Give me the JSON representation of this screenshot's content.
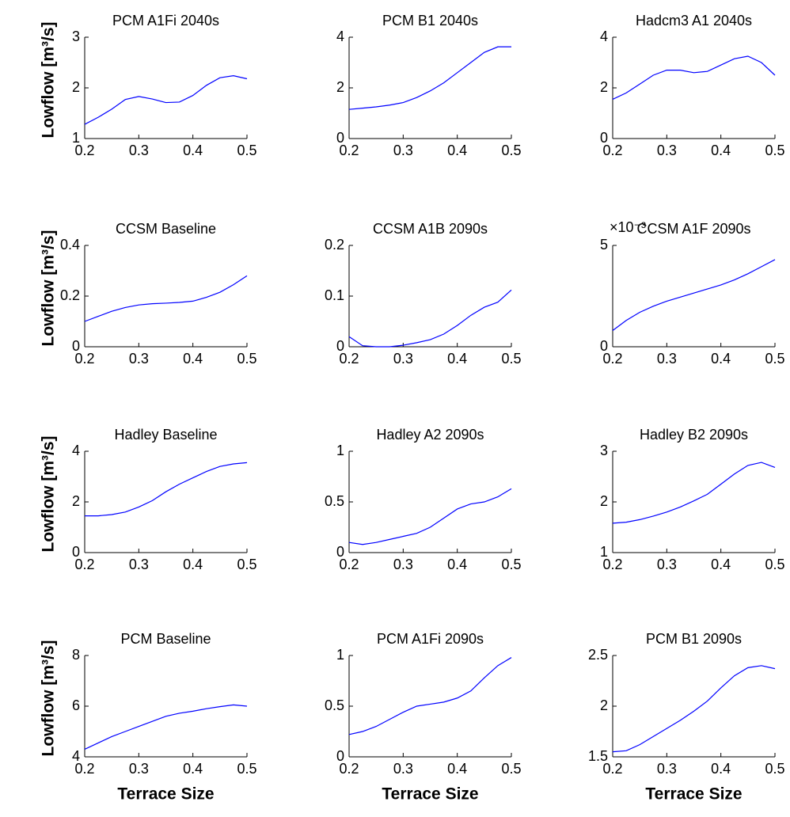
{
  "chart_data": [
    {
      "type": "line",
      "title": "PCM A1Fi 2040s",
      "ylabel": "Lowflow [m³/s]",
      "color": "#0000ff",
      "xlim": [
        0.2,
        0.5
      ],
      "xticks": [
        0.2,
        0.3,
        0.4,
        0.5
      ],
      "ylim": [
        1,
        3
      ],
      "yticks": [
        1,
        2,
        3
      ],
      "x": [
        0.2,
        0.225,
        0.25,
        0.275,
        0.3,
        0.325,
        0.35,
        0.375,
        0.4,
        0.425,
        0.45,
        0.475,
        0.5
      ],
      "values": [
        1.28,
        1.42,
        1.58,
        1.77,
        1.83,
        1.78,
        1.71,
        1.72,
        1.85,
        2.05,
        2.2,
        2.24,
        2.18
      ]
    },
    {
      "type": "line",
      "title": "PCM B1 2040s",
      "color": "#0000ff",
      "xlim": [
        0.2,
        0.5
      ],
      "xticks": [
        0.2,
        0.3,
        0.4,
        0.5
      ],
      "ylim": [
        0,
        4
      ],
      "yticks": [
        0,
        2,
        4
      ],
      "x": [
        0.2,
        0.225,
        0.25,
        0.275,
        0.3,
        0.325,
        0.35,
        0.375,
        0.4,
        0.425,
        0.45,
        0.475,
        0.5
      ],
      "values": [
        1.15,
        1.2,
        1.25,
        1.32,
        1.42,
        1.62,
        1.88,
        2.2,
        2.6,
        3.0,
        3.4,
        3.62,
        3.62
      ]
    },
    {
      "type": "line",
      "title": "Hadcm3 A1 2040s",
      "color": "#0000ff",
      "xlim": [
        0.2,
        0.5
      ],
      "xticks": [
        0.2,
        0.3,
        0.4,
        0.5
      ],
      "ylim": [
        0,
        4
      ],
      "yticks": [
        0,
        2,
        4
      ],
      "x": [
        0.2,
        0.225,
        0.25,
        0.275,
        0.3,
        0.325,
        0.35,
        0.375,
        0.4,
        0.425,
        0.45,
        0.475,
        0.5
      ],
      "values": [
        1.55,
        1.8,
        2.15,
        2.5,
        2.7,
        2.7,
        2.6,
        2.65,
        2.9,
        3.15,
        3.25,
        3.0,
        2.5
      ]
    },
    {
      "type": "line",
      "title": "CCSM Baseline",
      "ylabel": "Lowflow [m³/s]",
      "color": "#0000ff",
      "xlim": [
        0.2,
        0.5
      ],
      "xticks": [
        0.2,
        0.3,
        0.4,
        0.5
      ],
      "ylim": [
        0,
        0.4
      ],
      "yticks": [
        0,
        0.2,
        0.4
      ],
      "x": [
        0.2,
        0.225,
        0.25,
        0.275,
        0.3,
        0.325,
        0.35,
        0.375,
        0.4,
        0.425,
        0.45,
        0.475,
        0.5
      ],
      "values": [
        0.1,
        0.12,
        0.14,
        0.155,
        0.165,
        0.17,
        0.172,
        0.175,
        0.18,
        0.195,
        0.215,
        0.245,
        0.28
      ]
    },
    {
      "type": "line",
      "title": "CCSM A1B 2090s",
      "color": "#0000ff",
      "xlim": [
        0.2,
        0.5
      ],
      "xticks": [
        0.2,
        0.3,
        0.4,
        0.5
      ],
      "ylim": [
        0,
        0.2
      ],
      "yticks": [
        0,
        0.1,
        0.2
      ],
      "x": [
        0.2,
        0.225,
        0.25,
        0.275,
        0.3,
        0.325,
        0.35,
        0.375,
        0.4,
        0.425,
        0.45,
        0.475,
        0.5
      ],
      "values": [
        0.02,
        0.002,
        0,
        0,
        0.003,
        0.008,
        0.014,
        0.025,
        0.042,
        0.062,
        0.078,
        0.088,
        0.112
      ]
    },
    {
      "type": "line",
      "title": "CCSM A1F 2090s",
      "y_exponent_label": "×10⁻³",
      "color": "#0000ff",
      "xlim": [
        0.2,
        0.5
      ],
      "xticks": [
        0.2,
        0.3,
        0.4,
        0.5
      ],
      "ylim": [
        0,
        5
      ],
      "yticks": [
        0,
        5
      ],
      "x": [
        0.2,
        0.225,
        0.25,
        0.275,
        0.3,
        0.325,
        0.35,
        0.375,
        0.4,
        0.425,
        0.45,
        0.475,
        0.5
      ],
      "values": [
        0.8,
        1.3,
        1.7,
        2.0,
        2.25,
        2.45,
        2.65,
        2.85,
        3.05,
        3.3,
        3.6,
        3.95,
        4.3
      ]
    },
    {
      "type": "line",
      "title": "Hadley Baseline",
      "ylabel": "Lowflow [m³/s]",
      "color": "#0000ff",
      "xlim": [
        0.2,
        0.5
      ],
      "xticks": [
        0.2,
        0.3,
        0.4,
        0.5
      ],
      "ylim": [
        0,
        4
      ],
      "yticks": [
        0,
        2,
        4
      ],
      "x": [
        0.2,
        0.225,
        0.25,
        0.275,
        0.3,
        0.325,
        0.35,
        0.375,
        0.4,
        0.425,
        0.45,
        0.475,
        0.5
      ],
      "values": [
        1.45,
        1.45,
        1.5,
        1.6,
        1.8,
        2.05,
        2.4,
        2.7,
        2.95,
        3.2,
        3.4,
        3.5,
        3.55
      ]
    },
    {
      "type": "line",
      "title": "Hadley A2 2090s",
      "color": "#0000ff",
      "xlim": [
        0.2,
        0.5
      ],
      "xticks": [
        0.2,
        0.3,
        0.4,
        0.5
      ],
      "ylim": [
        0,
        1
      ],
      "yticks": [
        0,
        0.5,
        1
      ],
      "x": [
        0.2,
        0.225,
        0.25,
        0.275,
        0.3,
        0.325,
        0.35,
        0.375,
        0.4,
        0.425,
        0.45,
        0.475,
        0.5
      ],
      "values": [
        0.1,
        0.08,
        0.1,
        0.13,
        0.16,
        0.19,
        0.25,
        0.34,
        0.43,
        0.48,
        0.5,
        0.55,
        0.63
      ]
    },
    {
      "type": "line",
      "title": "Hadley B2 2090s",
      "color": "#0000ff",
      "xlim": [
        0.2,
        0.5
      ],
      "xticks": [
        0.2,
        0.3,
        0.4,
        0.5
      ],
      "ylim": [
        1,
        3
      ],
      "yticks": [
        1,
        2,
        3
      ],
      "x": [
        0.2,
        0.225,
        0.25,
        0.275,
        0.3,
        0.325,
        0.35,
        0.375,
        0.4,
        0.425,
        0.45,
        0.475,
        0.5
      ],
      "values": [
        1.58,
        1.6,
        1.65,
        1.72,
        1.8,
        1.9,
        2.02,
        2.15,
        2.35,
        2.55,
        2.72,
        2.78,
        2.68
      ]
    },
    {
      "type": "line",
      "title": "PCM Baseline",
      "ylabel": "Lowflow [m³/s]",
      "xlabel": "Terrace Size",
      "color": "#0000ff",
      "xlim": [
        0.2,
        0.5
      ],
      "xticks": [
        0.2,
        0.3,
        0.4,
        0.5
      ],
      "ylim": [
        4,
        8
      ],
      "yticks": [
        4,
        6,
        8
      ],
      "x": [
        0.2,
        0.225,
        0.25,
        0.275,
        0.3,
        0.325,
        0.35,
        0.375,
        0.4,
        0.425,
        0.45,
        0.475,
        0.5
      ],
      "values": [
        4.3,
        4.55,
        4.8,
        5.0,
        5.2,
        5.4,
        5.6,
        5.72,
        5.8,
        5.9,
        5.98,
        6.05,
        6.0
      ]
    },
    {
      "type": "line",
      "title": "PCM A1Fi 2090s",
      "xlabel": "Terrace Size",
      "color": "#0000ff",
      "xlim": [
        0.2,
        0.5
      ],
      "xticks": [
        0.2,
        0.3,
        0.4,
        0.5
      ],
      "ylim": [
        0,
        1
      ],
      "yticks": [
        0,
        0.5,
        1
      ],
      "x": [
        0.2,
        0.225,
        0.25,
        0.275,
        0.3,
        0.325,
        0.35,
        0.375,
        0.4,
        0.425,
        0.45,
        0.475,
        0.5
      ],
      "values": [
        0.22,
        0.25,
        0.3,
        0.37,
        0.44,
        0.5,
        0.52,
        0.54,
        0.58,
        0.65,
        0.78,
        0.9,
        0.98
      ]
    },
    {
      "type": "line",
      "title": "PCM B1 2090s",
      "xlabel": "Terrace Size",
      "color": "#0000ff",
      "xlim": [
        0.2,
        0.5
      ],
      "xticks": [
        0.2,
        0.3,
        0.4,
        0.5
      ],
      "ylim": [
        1.5,
        2.5
      ],
      "yticks": [
        1.5,
        2,
        2.5
      ],
      "x": [
        0.2,
        0.225,
        0.25,
        0.275,
        0.3,
        0.325,
        0.35,
        0.375,
        0.4,
        0.425,
        0.45,
        0.475,
        0.5
      ],
      "values": [
        1.55,
        1.56,
        1.62,
        1.7,
        1.78,
        1.86,
        1.95,
        2.05,
        2.18,
        2.3,
        2.38,
        2.4,
        2.37
      ]
    }
  ]
}
